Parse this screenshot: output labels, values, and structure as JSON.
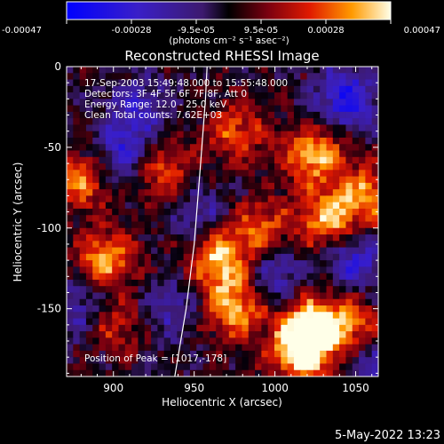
{
  "chart_data": {
    "type": "heatmap",
    "title": "Reconstructed RHESSI Image",
    "xlabel": "Heliocentric X (arcsec)",
    "ylabel": "Heliocentric Y (arcsec)",
    "xlim": [
      871,
      1064
    ],
    "ylim": [
      -192,
      0
    ],
    "xticks": [
      900,
      950,
      1000,
      1050
    ],
    "yticks": [
      0,
      -50,
      -100,
      -150
    ],
    "colorbar": {
      "ticks": [
        "-0.00047",
        "-0.00028",
        "-9.5e-05",
        "9.5e-05",
        "0.00028",
        "0.00047"
      ],
      "label": "(photons cm⁻² s⁻¹ asec⁻²)",
      "range": [
        -0.00047,
        0.00047
      ]
    },
    "annotations": [
      "17-Sep-2003 15:49:48.000 to 15:55:48.000",
      "Detectors: 3F 4F 5F 6F 7F 8F, Att 0",
      "Energy Range: 12.0 - 25.0 keV",
      "Clean     Total counts: 7.62E+03"
    ],
    "peak_label": "Position of Peak = [1017,-178]",
    "limb_curve": [
      [
        938,
        -192
      ],
      [
        945,
        -150
      ],
      [
        950,
        -110
      ],
      [
        954,
        -60
      ],
      [
        957,
        -20
      ],
      [
        958,
        0
      ]
    ],
    "hotspots": [
      {
        "x": 1017,
        "y": -178,
        "v": 1.0
      },
      {
        "x": 1020,
        "y": -160,
        "v": 0.9
      },
      {
        "x": 1024,
        "y": -55,
        "v": 0.85
      },
      {
        "x": 1032,
        "y": -95,
        "v": 0.8
      },
      {
        "x": 880,
        "y": -70,
        "v": 0.7
      },
      {
        "x": 895,
        "y": -120,
        "v": 0.8
      },
      {
        "x": 965,
        "y": -120,
        "v": 0.9
      },
      {
        "x": 975,
        "y": -150,
        "v": 0.85
      },
      {
        "x": 975,
        "y": -40,
        "v": 0.6
      },
      {
        "x": 1058,
        "y": -80,
        "v": 0.75
      },
      {
        "x": 1045,
        "y": -160,
        "v": 0.7
      },
      {
        "x": 930,
        "y": -65,
        "v": 0.6
      },
      {
        "x": 900,
        "y": -160,
        "v": 0.5
      },
      {
        "x": 990,
        "y": -100,
        "v": 0.6
      },
      {
        "x": 935,
        "y": -150,
        "v": -0.4
      },
      {
        "x": 915,
        "y": -25,
        "v": -0.5
      },
      {
        "x": 905,
        "y": -55,
        "v": -0.6
      },
      {
        "x": 1045,
        "y": -20,
        "v": -0.8
      },
      {
        "x": 1050,
        "y": -120,
        "v": -0.6
      },
      {
        "x": 1000,
        "y": -130,
        "v": -0.5
      },
      {
        "x": 880,
        "y": -150,
        "v": -0.5
      },
      {
        "x": 955,
        "y": -90,
        "v": -0.4
      },
      {
        "x": 1060,
        "y": -185,
        "v": -0.4
      }
    ]
  },
  "footer": {
    "date": "5-May-2022 13:23"
  }
}
